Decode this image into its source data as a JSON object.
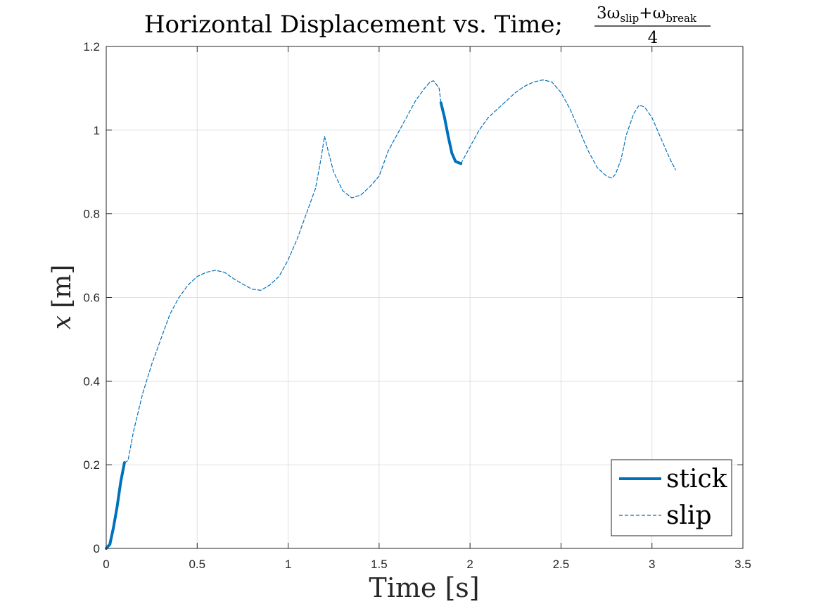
{
  "chart_data": {
    "type": "line",
    "title": "Horizontal Displacement vs. Time;",
    "title_fraction": {
      "numerator": "3ω",
      "numerator_sub1": "slip",
      "plus": "+ω",
      "numerator_sub2": "break",
      "denominator": "4"
    },
    "xlabel": "Time [s]",
    "ylabel": {
      "symbol": "x",
      "unit": "[m]"
    },
    "xlim": [
      0,
      3.5
    ],
    "ylim": [
      0,
      1.2
    ],
    "xticks": [
      0,
      0.5,
      1,
      1.5,
      2,
      2.5,
      3,
      3.5
    ],
    "xtick_labels": [
      "0",
      "0.5",
      "1",
      "1.5",
      "2",
      "2.5",
      "3",
      "3.5"
    ],
    "yticks": [
      0,
      0.2,
      0.4,
      0.6,
      0.8,
      1.0,
      1.2
    ],
    "ytick_labels": [
      "0",
      "0.2",
      "0.4",
      "0.6",
      "0.8",
      "1",
      "1.2"
    ],
    "grid": true,
    "legend_position": "bottom-right",
    "colors": {
      "series": "#0072bd",
      "grid": "#e0e0e0",
      "axis": "#262626"
    },
    "series": [
      {
        "name": "stick",
        "style": "solid",
        "segments": [
          [
            [
              0.0,
              0.0
            ],
            [
              0.02,
              0.01
            ],
            [
              0.04,
              0.05
            ],
            [
              0.06,
              0.1
            ],
            [
              0.08,
              0.16
            ],
            [
              0.1,
              0.205
            ]
          ],
          [
            [
              1.84,
              1.065
            ],
            [
              1.86,
              1.03
            ],
            [
              1.88,
              0.985
            ],
            [
              1.9,
              0.945
            ],
            [
              1.92,
              0.925
            ],
            [
              1.95,
              0.92
            ]
          ]
        ]
      },
      {
        "name": "slip",
        "style": "dashed",
        "segments": [
          [
            [
              0.1,
              0.205
            ],
            [
              0.12,
              0.21
            ],
            [
              0.15,
              0.28
            ],
            [
              0.2,
              0.37
            ],
            [
              0.25,
              0.44
            ],
            [
              0.3,
              0.5
            ],
            [
              0.35,
              0.56
            ],
            [
              0.4,
              0.6
            ],
            [
              0.45,
              0.63
            ],
            [
              0.5,
              0.65
            ],
            [
              0.55,
              0.66
            ],
            [
              0.6,
              0.665
            ],
            [
              0.65,
              0.66
            ],
            [
              0.7,
              0.645
            ],
            [
              0.75,
              0.632
            ],
            [
              0.8,
              0.62
            ],
            [
              0.85,
              0.617
            ],
            [
              0.9,
              0.63
            ],
            [
              0.95,
              0.65
            ],
            [
              1.0,
              0.69
            ],
            [
              1.05,
              0.74
            ],
            [
              1.1,
              0.8
            ],
            [
              1.15,
              0.86
            ],
            [
              1.18,
              0.93
            ],
            [
              1.2,
              0.985
            ],
            [
              1.22,
              0.95
            ],
            [
              1.25,
              0.9
            ],
            [
              1.3,
              0.855
            ],
            [
              1.35,
              0.838
            ],
            [
              1.4,
              0.845
            ],
            [
              1.45,
              0.865
            ],
            [
              1.5,
              0.89
            ],
            [
              1.55,
              0.95
            ],
            [
              1.6,
              0.99
            ],
            [
              1.65,
              1.03
            ],
            [
              1.7,
              1.07
            ],
            [
              1.75,
              1.1
            ],
            [
              1.78,
              1.115
            ],
            [
              1.8,
              1.118
            ],
            [
              1.83,
              1.1
            ],
            [
              1.84,
              1.065
            ]
          ],
          [
            [
              1.95,
              0.92
            ],
            [
              2.0,
              0.96
            ],
            [
              2.05,
              1.0
            ],
            [
              2.1,
              1.03
            ],
            [
              2.15,
              1.05
            ],
            [
              2.2,
              1.07
            ],
            [
              2.25,
              1.09
            ],
            [
              2.3,
              1.105
            ],
            [
              2.35,
              1.115
            ],
            [
              2.4,
              1.12
            ],
            [
              2.45,
              1.115
            ],
            [
              2.5,
              1.09
            ],
            [
              2.55,
              1.05
            ],
            [
              2.6,
              1.0
            ],
            [
              2.65,
              0.95
            ],
            [
              2.7,
              0.91
            ],
            [
              2.75,
              0.89
            ],
            [
              2.78,
              0.885
            ],
            [
              2.8,
              0.895
            ],
            [
              2.83,
              0.93
            ],
            [
              2.86,
              0.99
            ],
            [
              2.9,
              1.04
            ],
            [
              2.93,
              1.06
            ],
            [
              2.96,
              1.055
            ],
            [
              3.0,
              1.03
            ],
            [
              3.05,
              0.98
            ],
            [
              3.1,
              0.93
            ],
            [
              3.13,
              0.905
            ]
          ]
        ]
      }
    ]
  }
}
